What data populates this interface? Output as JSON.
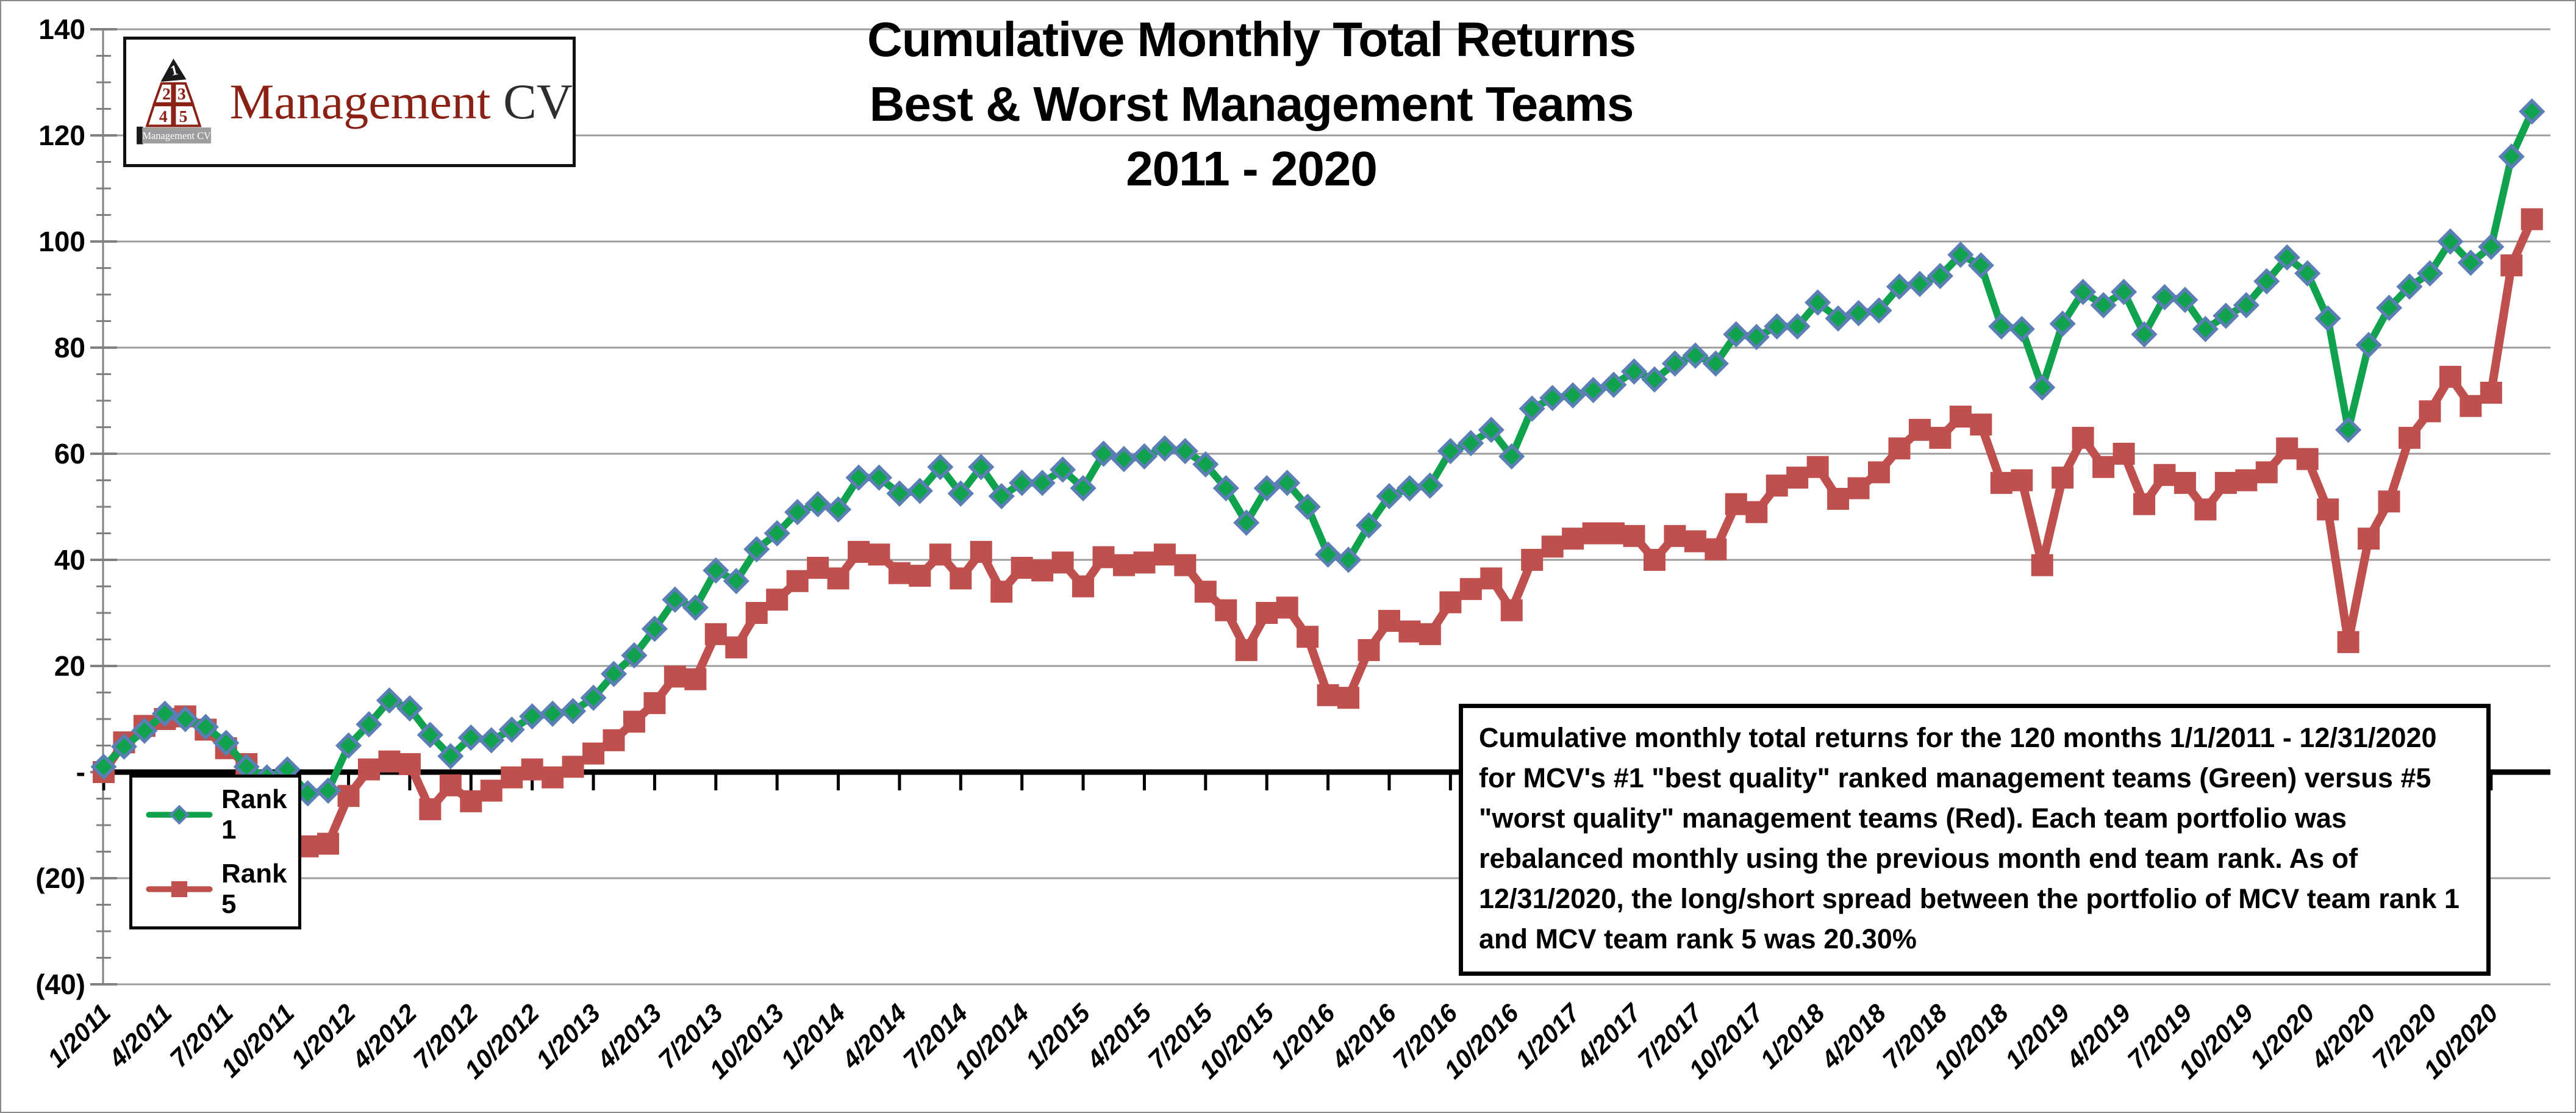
{
  "logo": {
    "brand_red": "Management",
    "brand_dark": "CV",
    "pyramid_cells": [
      "1",
      "2",
      "3",
      "4",
      "5"
    ],
    "banner": "Management CV"
  },
  "title": {
    "line1": "Cumulative Monthly Total Returns",
    "line2": "Best & Worst Management Teams",
    "line3": "2011 - 2020"
  },
  "legend": {
    "items": [
      {
        "label": "Rank 1"
      },
      {
        "label": "Rank 5"
      }
    ]
  },
  "annotation": {
    "text": "Cumulative monthly total returns for the 120 months 1/1/2011 - 12/31/2020 for MCV's #1 \"best quality\" ranked management teams (Green) versus #5 \"worst quality\" management teams (Red).  Each team portfolio was rebalanced monthly using the previous month end team rank.  As of 12/31/2020, the long/short spread between the portfolio of MCV team rank 1 and MCV team rank 5 was 20.30%"
  },
  "colors": {
    "rank1_green": "#10A24C",
    "rank1_marker_border": "#5B7EB5",
    "rank5_red": "#C0504D",
    "gridline_gray": "#9c9c9c",
    "axis_black": "#000000",
    "logo_red": "#8B2015"
  },
  "chart_data": {
    "type": "line",
    "title": "Cumulative Monthly Total Returns  Best & Worst Management Teams  2011 - 2020",
    "xlabel": "",
    "ylabel": "",
    "ylim": [
      -40,
      140
    ],
    "y_tick_step": 20,
    "grid": "horizontal",
    "legend_position": "lower-left-box",
    "y_tick_values": [
      140,
      120,
      100,
      80,
      60,
      40,
      20,
      0,
      -20,
      -40
    ],
    "y_tick_labels": [
      "140",
      "120",
      "100",
      "80",
      "60",
      "40",
      "20",
      "-",
      "(20)",
      "(40)"
    ],
    "x_tick_labels": [
      "1/2011",
      "4/2011",
      "7/2011",
      "10/2011",
      "1/2012",
      "4/2012",
      "7/2012",
      "10/2012",
      "1/2013",
      "4/2013",
      "7/2013",
      "10/2013",
      "1/2014",
      "4/2014",
      "7/2014",
      "10/2014",
      "1/2015",
      "4/2015",
      "7/2015",
      "10/2015",
      "1/2016",
      "4/2016",
      "7/2016",
      "10/2016",
      "1/2017",
      "4/2017",
      "7/2017",
      "10/2017",
      "1/2018",
      "4/2018",
      "7/2018",
      "10/2018",
      "1/2019",
      "4/2019",
      "7/2019",
      "10/2019",
      "1/2020",
      "4/2020",
      "7/2020",
      "10/2020"
    ],
    "series": [
      {
        "name": "Rank 1",
        "marker": "diamond",
        "color": "#10A24C",
        "marker_border": "#5B7EB5",
        "values": [
          1,
          4.8,
          7.8,
          11,
          10,
          8.5,
          5.5,
          1,
          -1,
          0.5,
          -4,
          -3.5,
          5,
          9,
          13.5,
          12,
          7,
          3,
          6.5,
          6,
          8,
          10.5,
          11,
          11.5,
          14,
          18.5,
          22,
          27,
          32.5,
          31,
          38,
          36,
          42,
          45,
          49,
          50.5,
          49.5,
          55.5,
          55.5,
          52.5,
          53,
          57.5,
          52.5,
          57.5,
          52,
          54.5,
          54.5,
          57,
          53.5,
          60,
          59,
          59.5,
          61,
          60.5,
          58,
          53.5,
          47,
          53.5,
          54.5,
          50,
          41,
          40,
          46.5,
          52,
          53.5,
          54,
          60.5,
          62,
          64.5,
          59.5,
          68.5,
          70.5,
          71,
          72,
          73,
          75.5,
          74,
          77,
          78.5,
          77,
          82.5,
          82,
          84,
          84,
          88.5,
          85.5,
          86.5,
          87,
          91.5,
          92,
          93.5,
          97.5,
          95.5,
          84,
          83.5,
          72.5,
          84.5,
          90.5,
          88,
          90.5,
          82.5,
          89.5,
          89,
          83.5,
          86,
          88,
          92.5,
          97,
          94,
          85.5,
          64.5,
          80.5,
          87.5,
          91.5,
          94,
          100,
          96,
          99,
          116,
          124.5
        ]
      },
      {
        "name": "Rank 5",
        "marker": "square",
        "color": "#C0504D",
        "values": [
          0,
          5.6,
          8.7,
          10,
          10.5,
          8,
          4.5,
          1.5,
          -12.5,
          -14.5,
          -14,
          -13.5,
          -4.5,
          0.5,
          2,
          1.5,
          -7,
          -2.5,
          -5.5,
          -3.5,
          -1,
          0.5,
          -1,
          1,
          3.5,
          6,
          9.5,
          13,
          18,
          17.5,
          26,
          23.5,
          30,
          32.5,
          36,
          38.5,
          36.5,
          41.5,
          41,
          37.5,
          37,
          41,
          36.5,
          41.5,
          34,
          38.5,
          38,
          39.5,
          35,
          40.5,
          39,
          39.5,
          41,
          39,
          34,
          30.5,
          23,
          30,
          31,
          25.5,
          14.5,
          14,
          23,
          28.5,
          26.5,
          26,
          32,
          34.5,
          36.5,
          30.5,
          40,
          42.5,
          44,
          45,
          45,
          44.5,
          40,
          44.5,
          43.5,
          42,
          50.5,
          49,
          54,
          55.5,
          57.5,
          51.5,
          53.5,
          56.5,
          61,
          64.5,
          63,
          67,
          65.5,
          54.5,
          55,
          39,
          55.5,
          63,
          57.5,
          60,
          50.5,
          56,
          54.5,
          49.5,
          54.5,
          55,
          56.5,
          61,
          59,
          49.5,
          24.5,
          44,
          51,
          63,
          68,
          74.5,
          69,
          71.5,
          95.5,
          104.2
        ]
      }
    ]
  }
}
